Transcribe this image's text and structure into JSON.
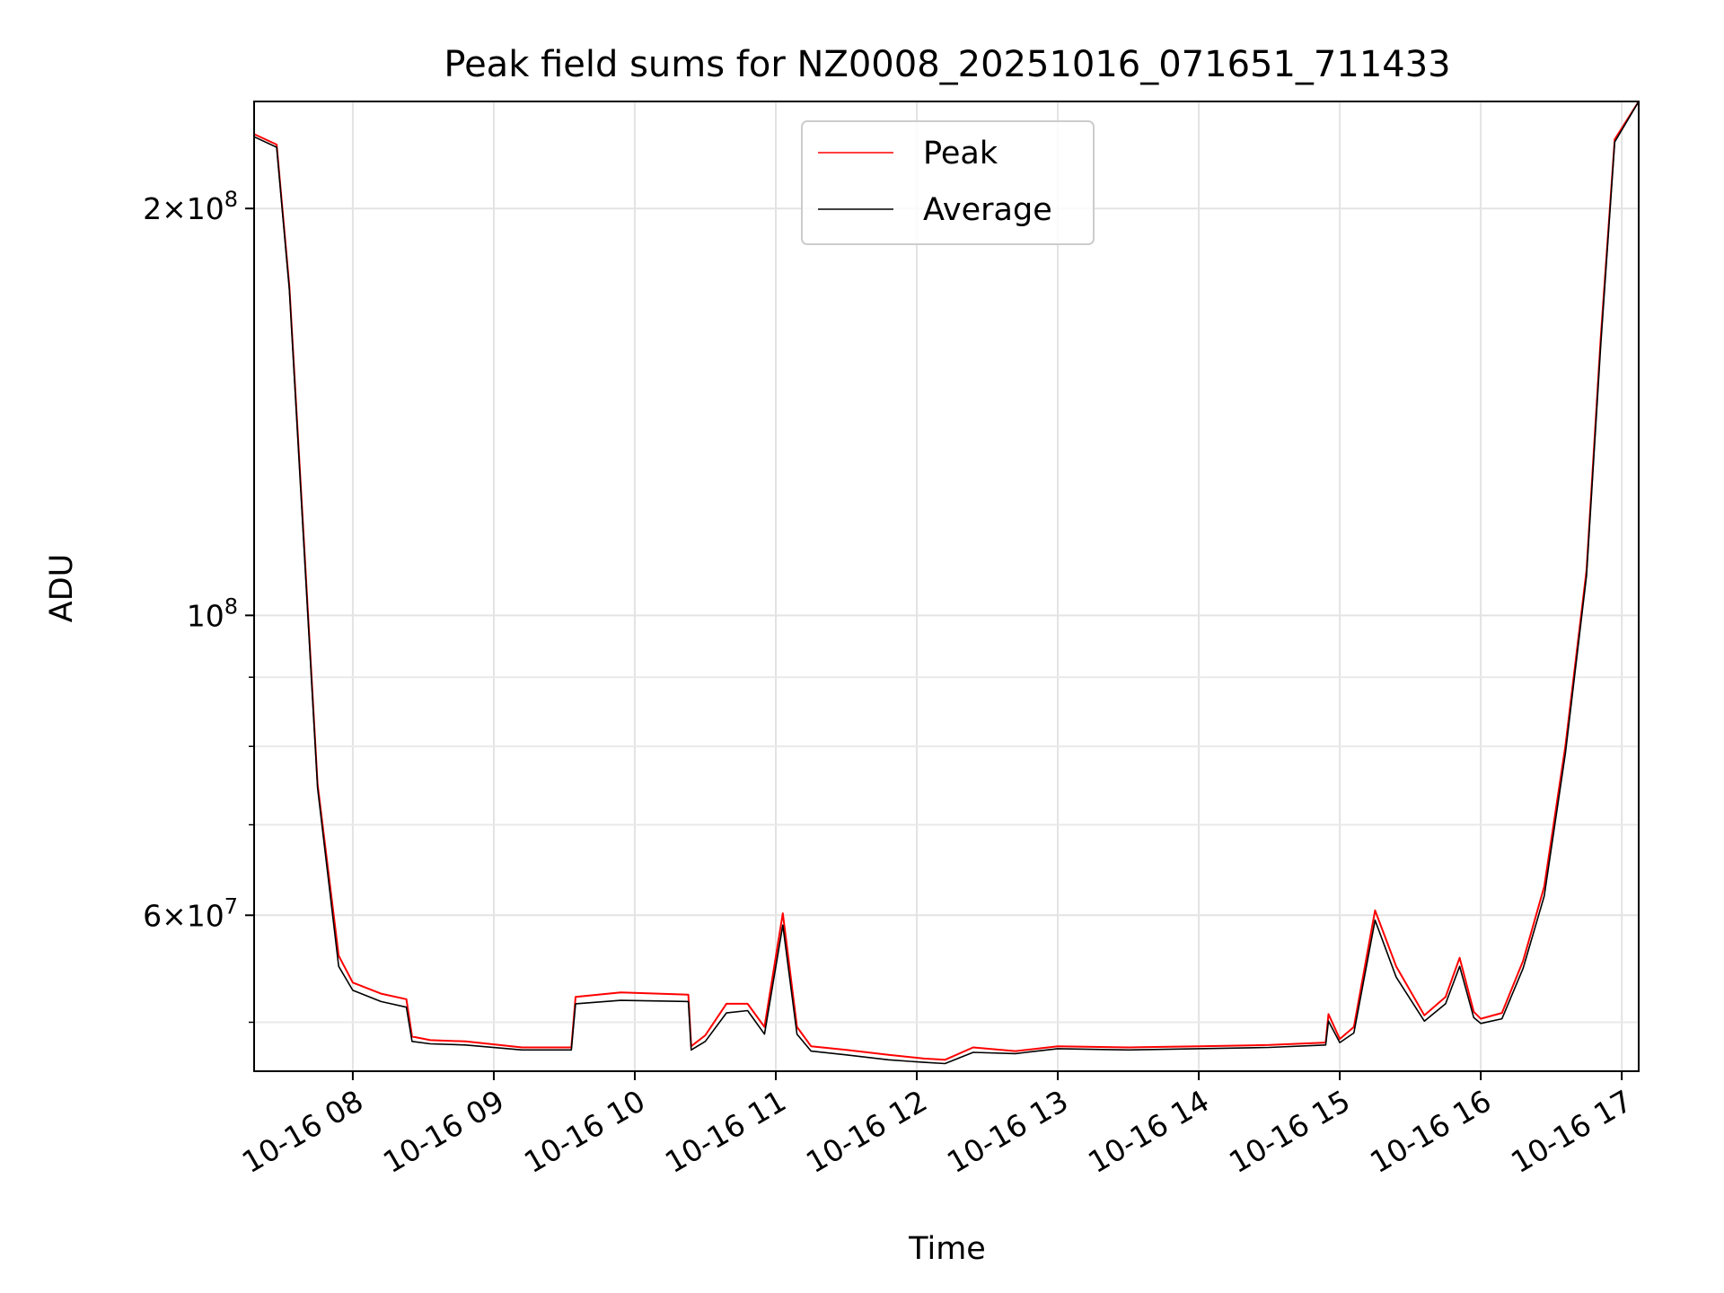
{
  "chart_data": {
    "type": "line",
    "title": "Peak field sums for NZ0008_20251016_071651_711433",
    "xlabel": "Time",
    "ylabel": "ADU",
    "yscale": "log",
    "ylim": [
      46000000,
      240000000
    ],
    "xlim_hours": [
      7.3,
      17.12
    ],
    "grid": true,
    "legend_position": "upper center",
    "x_ticks": [
      {
        "hour": 8,
        "label": "10-16 08"
      },
      {
        "hour": 9,
        "label": "10-16 09"
      },
      {
        "hour": 10,
        "label": "10-16 10"
      },
      {
        "hour": 11,
        "label": "10-16 11"
      },
      {
        "hour": 12,
        "label": "10-16 12"
      },
      {
        "hour": 13,
        "label": "10-16 13"
      },
      {
        "hour": 14,
        "label": "10-16 14"
      },
      {
        "hour": 15,
        "label": "10-16 15"
      },
      {
        "hour": 16,
        "label": "10-16 16"
      },
      {
        "hour": 17,
        "label": "10-16 17"
      }
    ],
    "y_major_ticks": [
      {
        "value": 60000000,
        "mantissa": "6",
        "exponent": "7"
      },
      {
        "value": 100000000,
        "mantissa": "",
        "exponent": "8"
      },
      {
        "value": 200000000,
        "mantissa": "2",
        "exponent": "8"
      }
    ],
    "y_minor_ticks": [
      50000000,
      70000000,
      80000000,
      90000000
    ],
    "series": [
      {
        "name": "Peak",
        "color": "#ff0000",
        "hours": [
          7.3,
          7.46,
          7.55,
          7.65,
          7.75,
          7.9,
          8.0,
          8.2,
          8.38,
          8.42,
          8.55,
          8.8,
          9.2,
          9.55,
          9.58,
          9.9,
          10.38,
          10.4,
          10.5,
          10.65,
          10.8,
          10.92,
          11.05,
          11.15,
          11.25,
          11.5,
          11.8,
          12.05,
          12.2,
          12.4,
          12.7,
          13.0,
          13.5,
          14.0,
          14.5,
          14.9,
          14.92,
          15.0,
          15.1,
          15.25,
          15.4,
          15.6,
          15.75,
          15.85,
          15.95,
          16.0,
          16.15,
          16.3,
          16.45,
          16.6,
          16.75,
          16.85,
          16.95,
          17.12
        ],
        "values": [
          227000000,
          223000000,
          175000000,
          115000000,
          75000000,
          56000000,
          53500000,
          52500000,
          52000000,
          48800000,
          48500000,
          48400000,
          47900000,
          47900000,
          52200000,
          52600000,
          52400000,
          48000000,
          48900000,
          51600000,
          51600000,
          49600000,
          60200000,
          49600000,
          48000000,
          47700000,
          47300000,
          47000000,
          46900000,
          47900000,
          47600000,
          48000000,
          47900000,
          48000000,
          48100000,
          48300000,
          50700000,
          48600000,
          49600000,
          60500000,
          55000000,
          50600000,
          52200000,
          55800000,
          50900000,
          50300000,
          50800000,
          55500000,
          63000000,
          80000000,
          108000000,
          160000000,
          225000000,
          240000000
        ]
      },
      {
        "name": "Average",
        "color": "#000000",
        "hours": [
          7.3,
          7.46,
          7.55,
          7.65,
          7.75,
          7.9,
          8.0,
          8.2,
          8.38,
          8.42,
          8.55,
          8.8,
          9.2,
          9.55,
          9.58,
          9.9,
          10.38,
          10.4,
          10.5,
          10.65,
          10.8,
          10.92,
          11.05,
          11.15,
          11.25,
          11.5,
          11.8,
          12.05,
          12.2,
          12.4,
          12.7,
          13.0,
          13.5,
          14.0,
          14.5,
          14.9,
          14.92,
          15.0,
          15.1,
          15.25,
          15.4,
          15.6,
          15.75,
          15.85,
          15.95,
          16.0,
          16.15,
          16.3,
          16.45,
          16.6,
          16.75,
          16.85,
          16.95,
          17.12
        ],
        "values": [
          226000000,
          222000000,
          174000000,
          114000000,
          74500000,
          55000000,
          52800000,
          51800000,
          51300000,
          48400000,
          48200000,
          48100000,
          47700000,
          47700000,
          51600000,
          51900000,
          51800000,
          47700000,
          48400000,
          50800000,
          51000000,
          49000000,
          59000000,
          49000000,
          47600000,
          47300000,
          46900000,
          46700000,
          46600000,
          47500000,
          47400000,
          47800000,
          47700000,
          47800000,
          47900000,
          48100000,
          50100000,
          48300000,
          49100000,
          59500000,
          54000000,
          50100000,
          51600000,
          55000000,
          50400000,
          49900000,
          50300000,
          54800000,
          62000000,
          79000000,
          107000000,
          158000000,
          224000000,
          240000000
        ]
      }
    ],
    "legend": [
      {
        "label": "Peak",
        "color": "#ff0000"
      },
      {
        "label": "Average",
        "color": "#000000"
      }
    ]
  }
}
